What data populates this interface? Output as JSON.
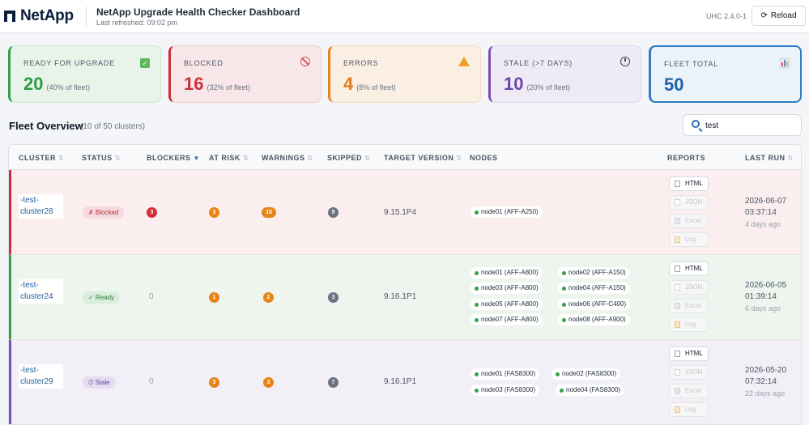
{
  "header": {
    "logo_text": "NetApp",
    "title": "NetApp Upgrade Health Checker Dashboard",
    "subtitle": "Last refreshed: 09:02 pm",
    "version": "UHC 2.4.0-1",
    "reload_label": "Reload",
    "reload_icon": "⟳"
  },
  "cards": {
    "ready": {
      "label": "READY FOR UPGRADE",
      "value": "20",
      "pct": "(40% of fleet)",
      "color": "#2e9a45"
    },
    "blocked": {
      "label": "BLOCKED",
      "value": "16",
      "pct": "(32% of fleet)",
      "color": "#c8313b"
    },
    "errors": {
      "label": "ERRORS",
      "value": "4",
      "pct": "(8% of fleet)",
      "color": "#e07a17"
    },
    "stale": {
      "label": "STALE (>7 DAYS)",
      "value": "10",
      "pct": "(20% of fleet)",
      "color": "#6d45a8"
    },
    "total": {
      "label": "FLEET TOTAL",
      "value": "50",
      "color": "#1f63a3"
    }
  },
  "fleet": {
    "title": "Fleet Overview",
    "count": "(10 of 50 clusters)",
    "search_value": "test"
  },
  "table": {
    "columns": [
      "CLUSTER",
      "STATUS",
      "BLOCKERS",
      "AT RISK",
      "WARNINGS",
      "SKIPPED",
      "TARGET VERSION",
      "NODES",
      "REPORTS",
      "LAST RUN"
    ],
    "sort_icons": {
      "neutral": "⇅",
      "active": "▼"
    },
    "reports": [
      "HTML",
      "JSON",
      "Excel",
      "Log"
    ],
    "rows": [
      {
        "cluster": "-test-cluster28",
        "status": "✗ Blocked",
        "blockers": "3",
        "at_risk": "3",
        "warnings": "10",
        "skipped": "9",
        "target": "9.15.1P4",
        "nodes": [
          "node01 (AFF-A250)"
        ],
        "date": "2026-06-07",
        "time": "03:37:14",
        "ago": "4 days ago"
      },
      {
        "cluster": "-test-cluster24",
        "status": "✓ Ready",
        "blockers": "0",
        "at_risk": "1",
        "warnings": "2",
        "skipped": "3",
        "target": "9.16.1P1",
        "nodes": [
          "node01 (AFF-A800)",
          "node02 (AFF-A150)",
          "node03 (AFF-A800)",
          "node04 (AFF-A150)",
          "node05 (AFF-A800)",
          "node06 (AFF-C400)",
          "node07 (AFF-A800)",
          "node08 (AFF-A900)"
        ],
        "date": "2026-06-05",
        "time": "01:39:14",
        "ago": "6 days ago"
      },
      {
        "cluster": "-test-cluster29",
        "status": "⏱ Stale",
        "blockers": "0",
        "at_risk": "3",
        "warnings": "3",
        "skipped": "7",
        "target": "9.16.1P1",
        "nodes": [
          "node01 (FAS8300)",
          "node02 (FAS8300)",
          "node03 (FAS8300)",
          "node04 (FAS8300)"
        ],
        "date": "2026-05-20",
        "time": "07:32:14",
        "ago": "22 days ago"
      }
    ]
  }
}
